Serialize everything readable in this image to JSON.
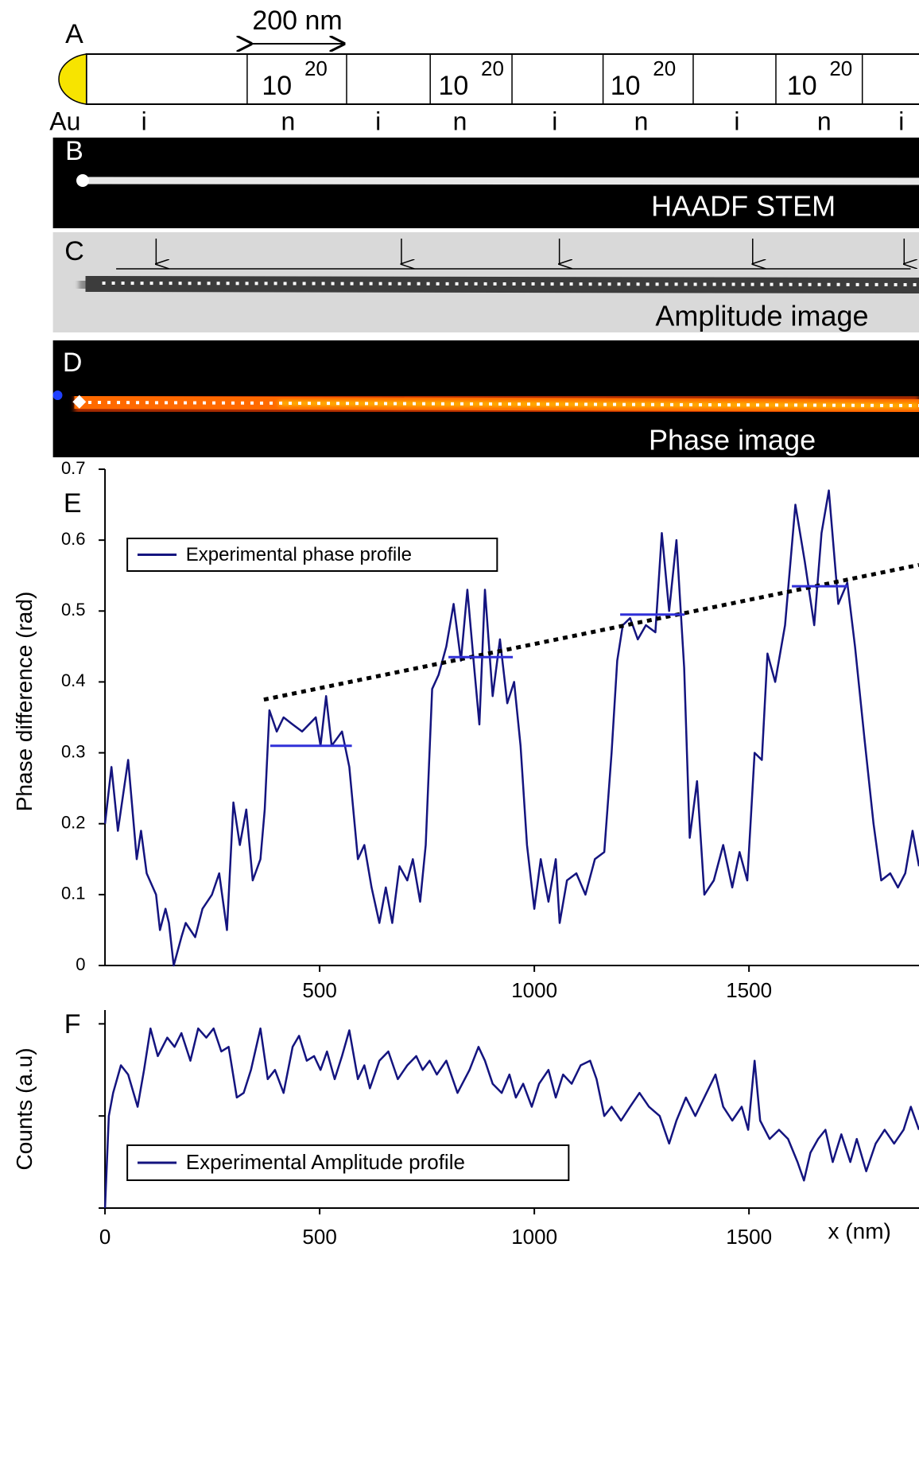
{
  "panels": {
    "a": {
      "label": "A",
      "scale_bar": "200 nm",
      "doping": [
        {
          "base": "10",
          "exp": "20"
        },
        {
          "base": "10",
          "exp": "20"
        },
        {
          "base": "10",
          "exp": "20"
        },
        {
          "base": "10",
          "exp": "20"
        }
      ],
      "segments": [
        "Au",
        "i",
        "n",
        "i",
        "n",
        "i",
        "n",
        "i",
        "n",
        "i"
      ]
    },
    "b": {
      "label": "B",
      "caption": "HAADF STEM"
    },
    "c": {
      "label": "C",
      "caption": "Amplitude image"
    },
    "d": {
      "label": "D",
      "caption": "Phase image"
    }
  },
  "chart_data": [
    {
      "type": "line",
      "label": "E",
      "ylabel": "Phase difference (rad)",
      "xlim": [
        0,
        1896
      ],
      "ylim": [
        0,
        0.7
      ],
      "xticks": [
        500,
        1000,
        1500
      ],
      "yticks": [
        0,
        0.1,
        0.2,
        0.3,
        0.4,
        0.5,
        0.6,
        0.7
      ],
      "ytick_labels": true,
      "legend": "upper left",
      "series": [
        {
          "name": "Experimental phase profile",
          "color": "#14147f",
          "x": [
            0,
            15,
            30,
            54,
            74,
            84,
            97,
            119,
            128,
            141,
            149,
            160,
            178,
            188,
            210,
            227,
            249,
            266,
            284,
            299,
            314,
            329,
            344,
            362,
            372,
            383,
            400,
            416,
            437,
            459,
            491,
            502,
            515,
            528,
            552,
            569,
            589,
            604,
            621,
            639,
            654,
            669,
            686,
            704,
            717,
            734,
            747,
            762,
            777,
            795,
            812,
            829,
            844,
            860,
            872,
            885,
            903,
            920,
            937,
            953,
            968,
            983,
            1000,
            1015,
            1033,
            1050,
            1059,
            1076,
            1098,
            1119,
            1141,
            1163,
            1180,
            1193,
            1206,
            1223,
            1241,
            1260,
            1282,
            1297,
            1314,
            1331,
            1349,
            1362,
            1379,
            1396,
            1418,
            1440,
            1461,
            1478,
            1496,
            1513,
            1530,
            1543,
            1561,
            1584,
            1608,
            1630,
            1652,
            1669,
            1686,
            1708,
            1729,
            1747,
            1769,
            1790,
            1808,
            1829,
            1847,
            1864,
            1881,
            1896
          ],
          "values": [
            0.2,
            0.28,
            0.19,
            0.29,
            0.15,
            0.19,
            0.13,
            0.1,
            0.05,
            0.08,
            0.06,
            0.0,
            0.04,
            0.06,
            0.04,
            0.08,
            0.1,
            0.13,
            0.05,
            0.23,
            0.17,
            0.22,
            0.12,
            0.15,
            0.22,
            0.36,
            0.33,
            0.35,
            0.34,
            0.33,
            0.35,
            0.31,
            0.38,
            0.31,
            0.33,
            0.28,
            0.15,
            0.17,
            0.11,
            0.06,
            0.11,
            0.06,
            0.14,
            0.12,
            0.15,
            0.09,
            0.17,
            0.39,
            0.41,
            0.45,
            0.51,
            0.43,
            0.53,
            0.42,
            0.34,
            0.53,
            0.38,
            0.46,
            0.37,
            0.4,
            0.31,
            0.17,
            0.08,
            0.15,
            0.09,
            0.15,
            0.06,
            0.12,
            0.13,
            0.1,
            0.15,
            0.16,
            0.3,
            0.43,
            0.48,
            0.49,
            0.46,
            0.48,
            0.47,
            0.61,
            0.5,
            0.6,
            0.42,
            0.18,
            0.26,
            0.1,
            0.12,
            0.17,
            0.11,
            0.16,
            0.12,
            0.3,
            0.29,
            0.44,
            0.4,
            0.48,
            0.65,
            0.57,
            0.48,
            0.61,
            0.67,
            0.51,
            0.54,
            0.45,
            0.32,
            0.2,
            0.12,
            0.13,
            0.11,
            0.13,
            0.19,
            0.14
          ]
        },
        {
          "color": "#000000",
          "style": "dotted",
          "x": [
            370,
            1896
          ],
          "values": [
            0.375,
            0.565
          ]
        },
        {
          "color": "#3030d8",
          "x": [
            385,
            575
          ],
          "values": [
            0.31,
            0.31
          ]
        },
        {
          "color": "#3030d8",
          "x": [
            800,
            950
          ],
          "values": [
            0.435,
            0.435
          ]
        },
        {
          "color": "#3030d8",
          "x": [
            1200,
            1350
          ],
          "values": [
            0.495,
            0.495
          ]
        },
        {
          "color": "#3030d8",
          "x": [
            1600,
            1730
          ],
          "values": [
            0.535,
            0.535
          ]
        }
      ]
    },
    {
      "type": "line",
      "label": "F",
      "ylabel": "Counts (a.u)",
      "xlabel": "x (nm)",
      "xlim": [
        0,
        1896
      ],
      "ylim": [
        0,
        2.15
      ],
      "xticks": [
        0,
        500,
        1000,
        1500
      ],
      "yticks": [
        0,
        1,
        2
      ],
      "ytick_labels": false,
      "legend": "lower left",
      "series": [
        {
          "name": "Experimental Amplitude profile",
          "color": "#14147f",
          "x": [
            0,
            9,
            19,
            37,
            54,
            76,
            91,
            106,
            123,
            145,
            162,
            178,
            199,
            217,
            236,
            253,
            271,
            288,
            307,
            323,
            340,
            362,
            379,
            396,
            416,
            437,
            452,
            470,
            487,
            502,
            517,
            535,
            552,
            569,
            589,
            604,
            617,
            639,
            660,
            682,
            704,
            725,
            740,
            756,
            773,
            795,
            821,
            849,
            870,
            885,
            903,
            924,
            942,
            957,
            974,
            994,
            1011,
            1033,
            1050,
            1067,
            1087,
            1108,
            1130,
            1145,
            1163,
            1180,
            1202,
            1223,
            1245,
            1267,
            1292,
            1314,
            1331,
            1353,
            1375,
            1401,
            1422,
            1440,
            1461,
            1483,
            1498,
            1513,
            1526,
            1548,
            1570,
            1591,
            1613,
            1628,
            1643,
            1661,
            1678,
            1695,
            1715,
            1736,
            1751,
            1773,
            1795,
            1816,
            1838,
            1860,
            1877,
            1896
          ],
          "values": [
            0.0,
            1.0,
            1.25,
            1.55,
            1.45,
            1.1,
            1.5,
            1.95,
            1.65,
            1.85,
            1.75,
            1.9,
            1.6,
            1.95,
            1.85,
            1.95,
            1.7,
            1.75,
            1.2,
            1.25,
            1.5,
            1.95,
            1.4,
            1.5,
            1.25,
            1.75,
            1.87,
            1.6,
            1.65,
            1.5,
            1.7,
            1.4,
            1.65,
            1.93,
            1.4,
            1.55,
            1.3,
            1.6,
            1.7,
            1.4,
            1.55,
            1.65,
            1.5,
            1.6,
            1.45,
            1.6,
            1.25,
            1.5,
            1.75,
            1.6,
            1.35,
            1.25,
            1.45,
            1.2,
            1.35,
            1.1,
            1.35,
            1.5,
            1.2,
            1.45,
            1.35,
            1.55,
            1.6,
            1.4,
            1.0,
            1.1,
            0.95,
            1.1,
            1.25,
            1.1,
            1.0,
            0.7,
            0.95,
            1.2,
            1.0,
            1.25,
            1.45,
            1.1,
            0.95,
            1.1,
            0.85,
            1.6,
            0.95,
            0.75,
            0.85,
            0.75,
            0.5,
            0.3,
            0.6,
            0.75,
            0.85,
            0.5,
            0.8,
            0.5,
            0.75,
            0.4,
            0.7,
            0.85,
            0.7,
            0.85,
            1.1,
            0.85
          ]
        }
      ]
    }
  ]
}
